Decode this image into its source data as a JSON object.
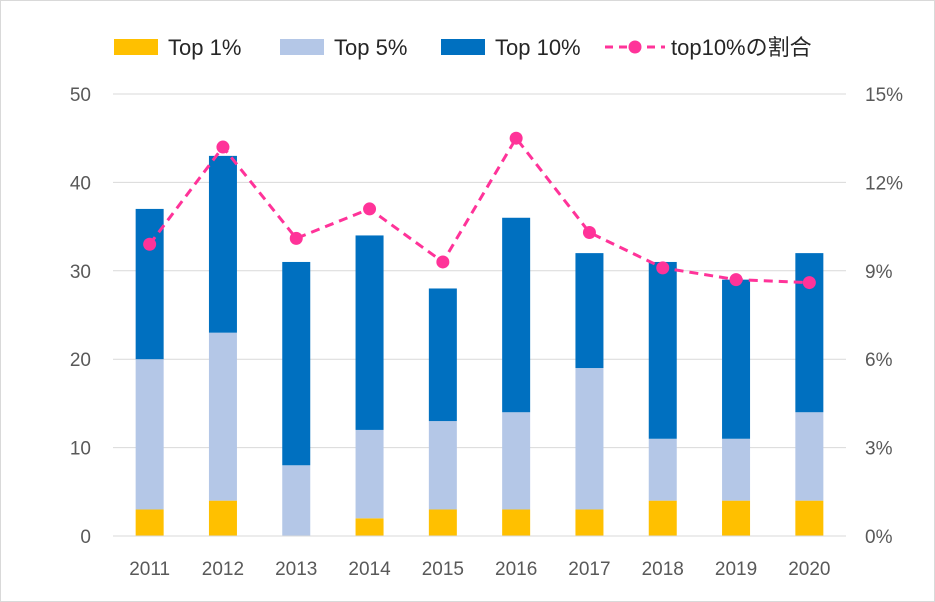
{
  "chart_data": {
    "type": "bar",
    "stacked": true,
    "categories": [
      "2011",
      "2012",
      "2013",
      "2014",
      "2015",
      "2016",
      "2017",
      "2018",
      "2019",
      "2020"
    ],
    "series": [
      {
        "name": "Top 1%",
        "type": "bar",
        "axis": "left",
        "color": "#FFC000",
        "values": [
          3,
          4,
          0,
          2,
          3,
          3,
          3,
          4,
          4,
          4
        ]
      },
      {
        "name": "Top 5%",
        "type": "bar",
        "axis": "left",
        "color": "#B4C7E7",
        "values": [
          17,
          19,
          8,
          10,
          10,
          11,
          16,
          7,
          7,
          10
        ]
      },
      {
        "name": "Top 10%",
        "type": "bar",
        "axis": "left",
        "color": "#0070C0",
        "values": [
          17,
          20,
          23,
          22,
          15,
          22,
          13,
          20,
          18,
          18
        ]
      },
      {
        "name": "top10%の割合",
        "type": "line",
        "axis": "right",
        "style": "dashed",
        "color": "#FF3399",
        "values": [
          9.9,
          13.2,
          10.1,
          11.1,
          9.3,
          13.5,
          10.3,
          9.1,
          8.7,
          8.6
        ]
      }
    ],
    "left_axis": {
      "ylim": [
        0,
        50
      ],
      "ticks": [
        "0",
        "10",
        "20",
        "30",
        "40",
        "50"
      ]
    },
    "right_axis": {
      "ylim": [
        0,
        15
      ],
      "ticks": [
        "0%",
        "3%",
        "6%",
        "9%",
        "12%",
        "15%"
      ]
    },
    "grid": true,
    "legend_position": "top",
    "title": "",
    "xlabel": "",
    "ylabel": ""
  }
}
